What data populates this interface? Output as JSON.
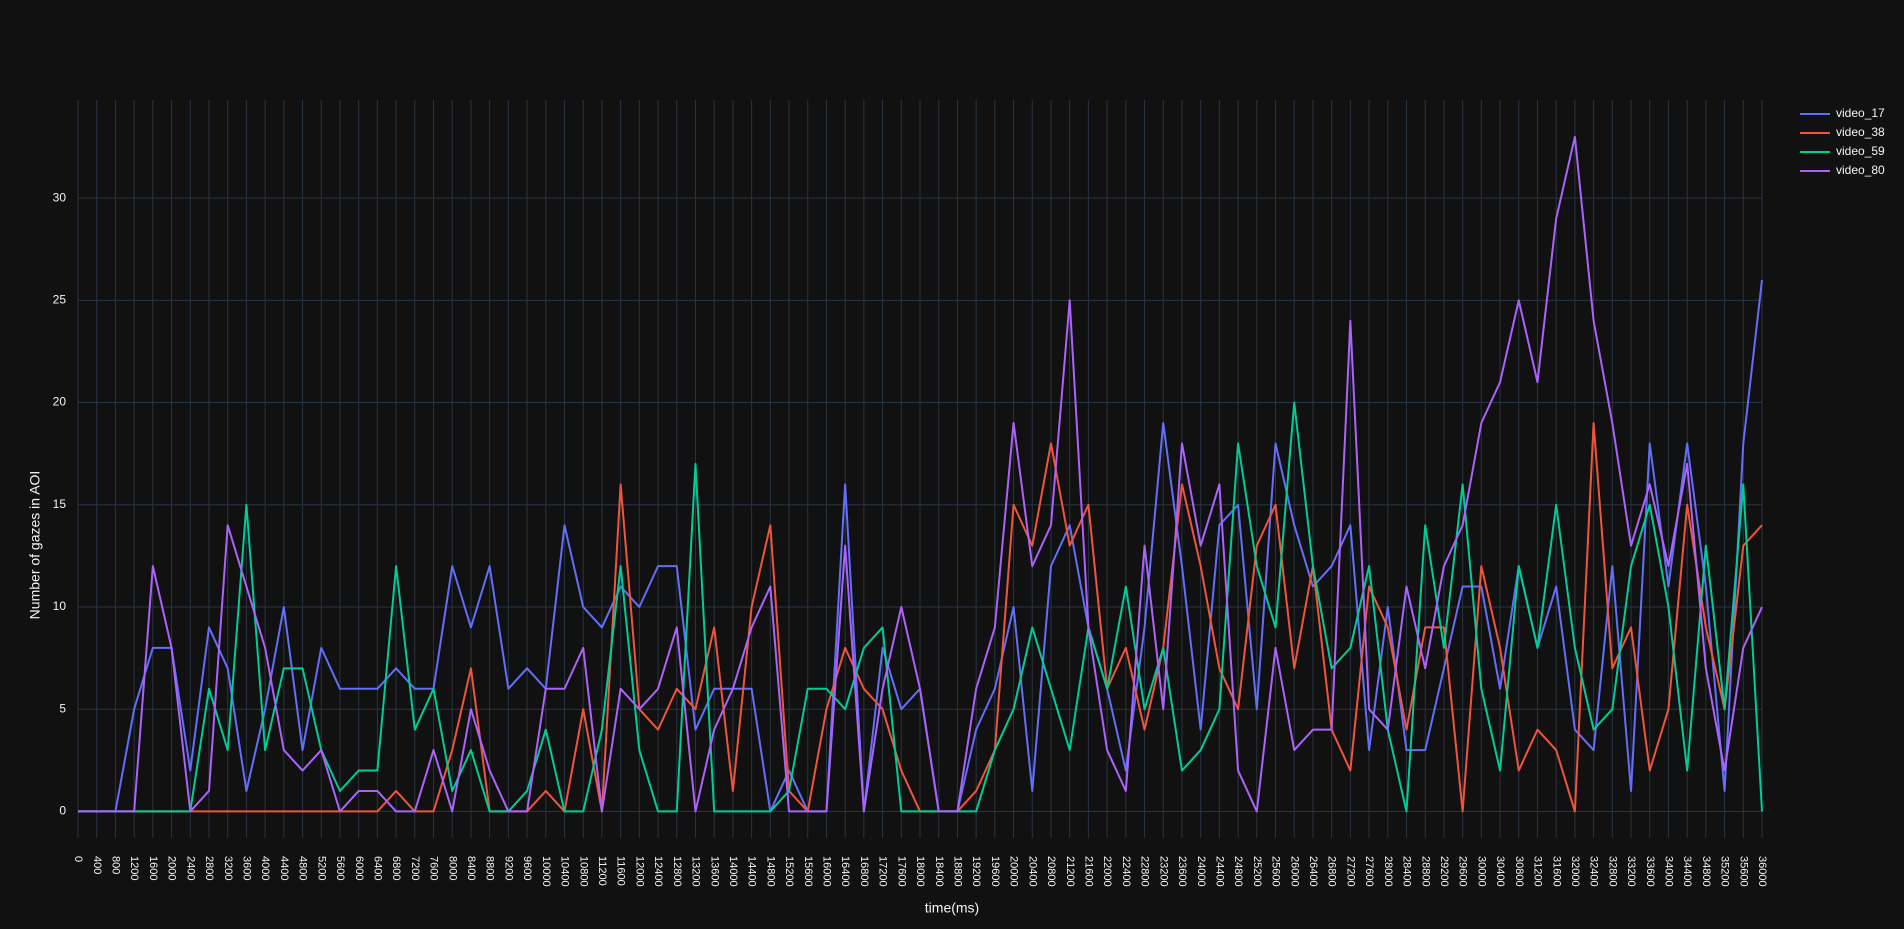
{
  "chart_data": {
    "type": "line",
    "x_label": "time(ms)",
    "y_label": "Number of gazes in AOI",
    "x": [
      0,
      400,
      800,
      1200,
      1600,
      2000,
      2400,
      2800,
      3200,
      3600,
      4000,
      4400,
      4800,
      5200,
      5600,
      6000,
      6400,
      6800,
      7200,
      7600,
      8000,
      8400,
      8800,
      9200,
      9600,
      10000,
      10400,
      10800,
      11200,
      11600,
      12000,
      12400,
      12800,
      13200,
      13600,
      14000,
      14400,
      14800,
      15200,
      15600,
      16000,
      16400,
      16800,
      17200,
      17600,
      18000,
      18400,
      18800,
      19200,
      19600,
      20000,
      20400,
      20800,
      21200,
      21600,
      22000,
      22400,
      22800,
      23200,
      23600,
      24000,
      24400,
      24800,
      25200,
      25600,
      26000,
      26400,
      26800,
      27200,
      27600,
      28000,
      28400,
      28800,
      29200,
      29600,
      30000,
      30400,
      30800,
      31200,
      31600,
      32000,
      32400,
      32800,
      33200,
      33600,
      34000,
      34400,
      34800,
      35200,
      35600,
      36000
    ],
    "series": [
      {
        "name": "video_17",
        "color": "#636efa",
        "values": [
          0,
          0,
          0,
          5,
          8,
          8,
          2,
          9,
          7,
          1,
          5,
          10,
          3,
          8,
          6,
          6,
          6,
          7,
          6,
          6,
          12,
          9,
          12,
          6,
          7,
          6,
          14,
          10,
          9,
          11,
          10,
          12,
          12,
          4,
          6,
          6,
          6,
          0,
          2,
          0,
          0,
          16,
          0,
          8,
          5,
          6,
          0,
          0,
          4,
          6,
          10,
          1,
          12,
          14,
          9,
          6,
          2,
          9,
          19,
          12,
          4,
          14,
          15,
          5,
          18,
          14,
          11,
          12,
          14,
          3,
          10,
          3,
          3,
          7,
          11,
          11,
          6,
          12,
          8,
          11,
          4,
          3,
          12,
          1,
          18,
          11,
          18,
          11,
          1,
          18,
          26
        ]
      },
      {
        "name": "video_38",
        "color": "#EF553B",
        "values": [
          0,
          0,
          0,
          0,
          0,
          0,
          0,
          0,
          0,
          0,
          0,
          0,
          0,
          0,
          0,
          0,
          0,
          1,
          0,
          0,
          3,
          7,
          0,
          0,
          0,
          1,
          0,
          5,
          0,
          16,
          5,
          4,
          6,
          5,
          9,
          1,
          10,
          14,
          1,
          0,
          5,
          8,
          6,
          5,
          2,
          0,
          0,
          0,
          1,
          3,
          15,
          13,
          18,
          13,
          15,
          6,
          8,
          4,
          8,
          16,
          12,
          7,
          5,
          13,
          15,
          7,
          12,
          4,
          2,
          11,
          9,
          4,
          9,
          9,
          0,
          12,
          8,
          2,
          4,
          3,
          0,
          19,
          7,
          9,
          2,
          5,
          15,
          9,
          5,
          13,
          14
        ]
      },
      {
        "name": "video_59",
        "color": "#00cc96",
        "values": [
          0,
          0,
          0,
          0,
          0,
          0,
          0,
          6,
          3,
          15,
          3,
          7,
          7,
          3,
          1,
          2,
          2,
          12,
          4,
          6,
          1,
          3,
          0,
          0,
          1,
          4,
          0,
          0,
          4,
          12,
          3,
          0,
          0,
          17,
          0,
          0,
          0,
          0,
          1,
          6,
          6,
          5,
          8,
          9,
          0,
          0,
          0,
          0,
          0,
          3,
          5,
          9,
          6,
          3,
          9,
          6,
          11,
          5,
          8,
          2,
          3,
          5,
          18,
          12,
          9,
          20,
          12,
          7,
          8,
          12,
          4,
          0,
          14,
          8,
          16,
          6,
          2,
          12,
          8,
          15,
          8,
          4,
          5,
          12,
          15,
          10,
          2,
          13,
          5,
          16,
          0
        ]
      },
      {
        "name": "video_80",
        "color": "#ab63fa",
        "values": [
          0,
          0,
          0,
          0,
          12,
          8,
          0,
          1,
          14,
          11,
          8,
          3,
          2,
          3,
          0,
          1,
          1,
          0,
          0,
          3,
          0,
          5,
          2,
          0,
          0,
          6,
          6,
          8,
          0,
          6,
          5,
          6,
          9,
          0,
          4,
          6,
          9,
          11,
          0,
          0,
          0,
          13,
          0,
          6,
          10,
          6,
          0,
          0,
          6,
          9,
          19,
          12,
          14,
          25,
          9,
          3,
          1,
          13,
          5,
          18,
          13,
          16,
          2,
          0,
          8,
          3,
          4,
          4,
          24,
          5,
          4,
          11,
          7,
          12,
          14,
          19,
          21,
          25,
          21,
          29,
          33,
          24,
          19,
          13,
          16,
          12,
          17,
          7,
          2,
          8,
          10
        ]
      }
    ],
    "xlim": [
      0,
      36000
    ],
    "ylim": [
      -1.3,
      34.8
    ],
    "xticks": [
      0,
      400,
      800,
      1200,
      1600,
      2000,
      2400,
      2800,
      3200,
      3600,
      4000,
      4400,
      4800,
      5200,
      5600,
      6000,
      6400,
      6800,
      7200,
      7600,
      8000,
      8400,
      8800,
      9200,
      9600,
      10000,
      10400,
      10800,
      11200,
      11600,
      12000,
      12400,
      12800,
      13200,
      13600,
      14000,
      14400,
      14800,
      15200,
      15600,
      16000,
      16400,
      16800,
      17200,
      17600,
      18000,
      18400,
      18800,
      19200,
      19600,
      20000,
      20400,
      20800,
      21200,
      21600,
      22000,
      22400,
      22800,
      23200,
      23600,
      24000,
      24400,
      24800,
      25200,
      25600,
      26000,
      26400,
      26800,
      27200,
      27600,
      28000,
      28400,
      28800,
      29200,
      29600,
      30000,
      30400,
      30800,
      31200,
      31600,
      32000,
      32400,
      32800,
      33200,
      33600,
      34000,
      34400,
      34800,
      35200,
      35600,
      36000
    ],
    "yticks": [
      0,
      5,
      10,
      15,
      20,
      25,
      30
    ],
    "grid": true,
    "legend": "top-right"
  }
}
